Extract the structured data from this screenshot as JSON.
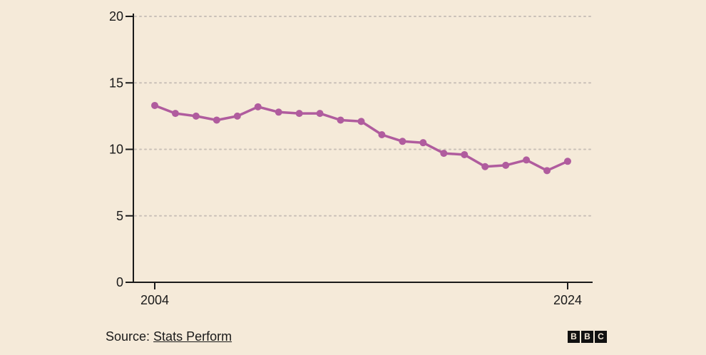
{
  "chart_data": {
    "type": "line",
    "x": [
      2004,
      2005,
      2006,
      2007,
      2008,
      2009,
      2010,
      2011,
      2012,
      2013,
      2014,
      2015,
      2016,
      2017,
      2018,
      2019,
      2020,
      2021,
      2022,
      2023,
      2024
    ],
    "series": [
      {
        "values": [
          13.3,
          12.7,
          12.5,
          12.2,
          12.5,
          13.2,
          12.8,
          12.7,
          12.7,
          12.2,
          12.1,
          11.1,
          10.6,
          10.5,
          9.7,
          9.6,
          8.7,
          8.8,
          9.2,
          8.4,
          9.1
        ],
        "color": "#b05c9e"
      }
    ],
    "x_tick_labels": [
      "2004",
      "2024"
    ],
    "y_ticks": [
      0,
      5,
      10,
      15,
      20
    ],
    "ylim": [
      0,
      20
    ],
    "xlim": [
      2004,
      2024
    ],
    "grid": "horizontal dotted",
    "xlabel": "",
    "ylabel": ""
  },
  "footer": {
    "source_prefix": "Source: ",
    "source_link": "Stats Perform"
  },
  "logo": {
    "letters": [
      "B",
      "B",
      "C"
    ]
  },
  "colors": {
    "background": "#f5ead9",
    "line": "#b05c9e",
    "grid": "#c9c0b8",
    "axis": "#1a1a1a"
  }
}
